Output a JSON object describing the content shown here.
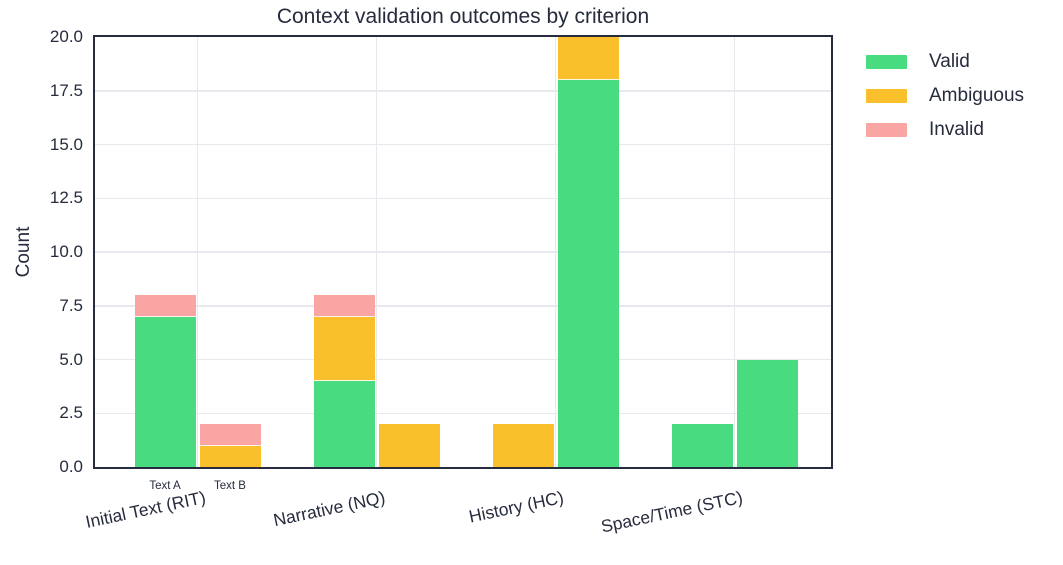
{
  "header": {
    "title": "Context validation outcomes by criterion"
  },
  "axes": {
    "ylabel": "Count",
    "yticks": [
      0,
      2.5,
      5,
      7.5,
      10,
      12.5,
      15,
      17.5,
      20
    ],
    "ytick_labels": [
      "0.0",
      "2.5",
      "5.0",
      "7.5",
      "10.0",
      "12.5",
      "15.0",
      "17.5",
      "20.0"
    ]
  },
  "legend": {
    "position": "upper-right-outside",
    "items": [
      {
        "label": "Valid",
        "color": "#49DB80"
      },
      {
        "label": "Ambiguous",
        "color": "#FAC02B"
      },
      {
        "label": "Invalid",
        "color": "#F9A5A3"
      }
    ]
  },
  "chart_data": {
    "type": "bar",
    "stacked": true,
    "title": "Context validation outcomes by criterion",
    "xlabel": "",
    "ylabel": "Count",
    "ylim": [
      0,
      20
    ],
    "grid": true,
    "categories": [
      "Initial Text (RIT)",
      "Narrative (NQ)",
      "History (HC)",
      "Space/Time (STC)"
    ],
    "bars_per_category": [
      "Text A",
      "Text B"
    ],
    "sublabels": {
      "labels": [
        "Text A",
        "Text B"
      ],
      "shown_under_category_index": 0
    },
    "series": [
      {
        "name": "Valid",
        "color": "#49DB80",
        "values_text_a": [
          7,
          4,
          0,
          2
        ],
        "values_text_b": [
          0,
          0,
          18,
          5
        ]
      },
      {
        "name": "Ambiguous",
        "color": "#FAC02B",
        "values_text_a": [
          0,
          3,
          2,
          0
        ],
        "values_text_b": [
          1,
          2,
          2,
          0
        ]
      },
      {
        "name": "Invalid",
        "color": "#F9A5A3",
        "values_text_a": [
          1,
          1,
          0,
          0
        ],
        "values_text_b": [
          1,
          0,
          0,
          0
        ]
      }
    ]
  },
  "colors": {
    "axis": "#262B3D",
    "grid": "#E8E8EE",
    "background": "#FFFFFF"
  }
}
